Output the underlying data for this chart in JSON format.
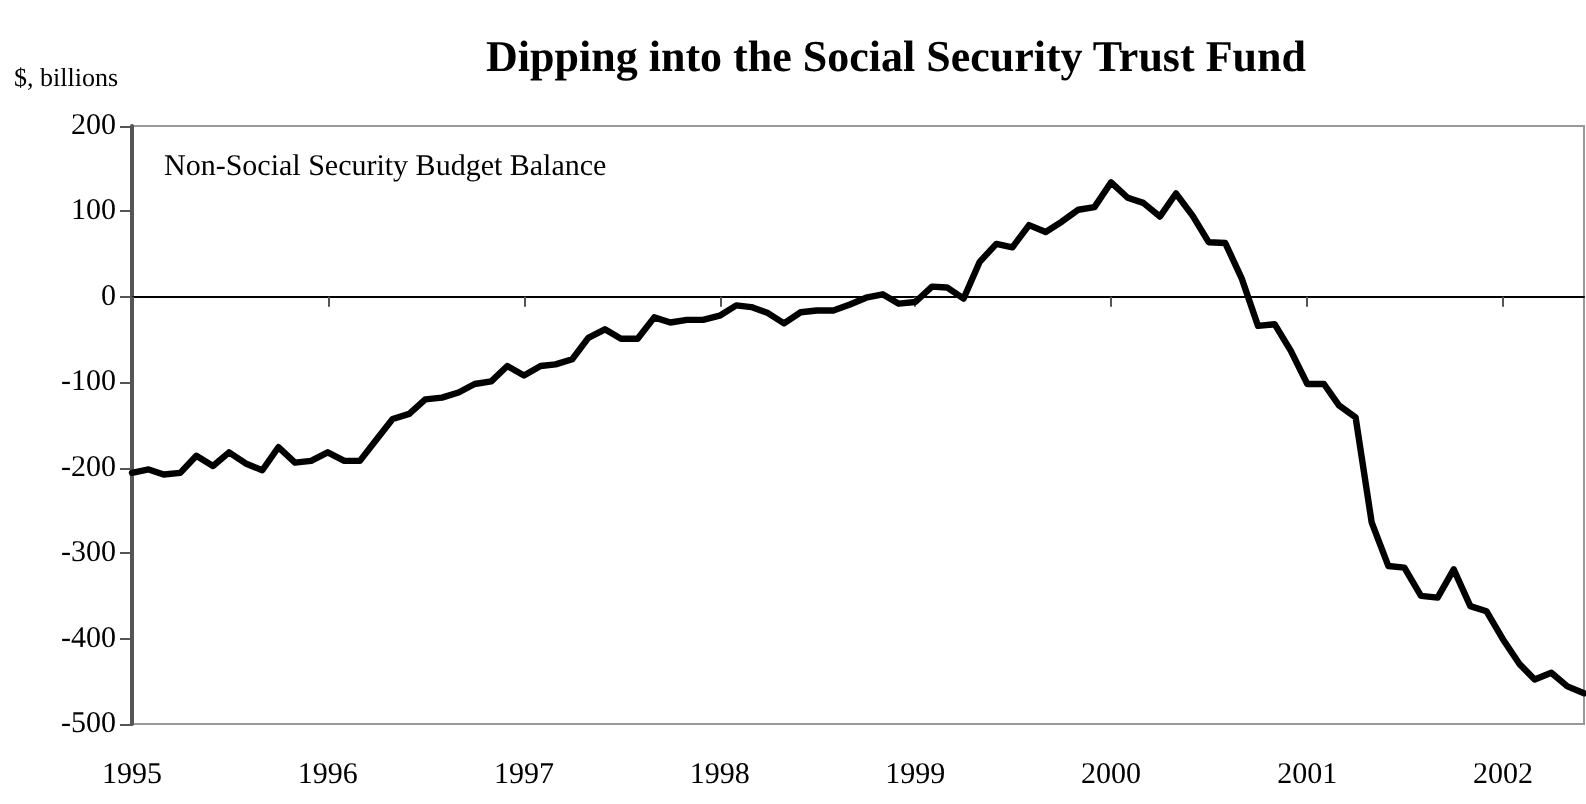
{
  "chart_data": {
    "type": "line",
    "title": "Dipping into the Social Security Trust Fund",
    "ylabel": "$, billions",
    "annotations": [
      "Non-Social Security Budget Balance"
    ],
    "x": [
      "1995-01",
      "1995-02",
      "1995-03",
      "1995-04",
      "1995-05",
      "1995-06",
      "1995-07",
      "1995-08",
      "1995-09",
      "1995-10",
      "1995-11",
      "1995-12",
      "1996-01",
      "1996-02",
      "1996-03",
      "1996-04",
      "1996-05",
      "1996-06",
      "1996-07",
      "1996-08",
      "1996-09",
      "1996-10",
      "1996-11",
      "1996-12",
      "1997-01",
      "1997-02",
      "1997-03",
      "1997-04",
      "1997-05",
      "1997-06",
      "1997-07",
      "1997-08",
      "1997-09",
      "1997-10",
      "1997-11",
      "1997-12",
      "1998-01",
      "1998-02",
      "1998-03",
      "1998-04",
      "1998-05",
      "1998-06",
      "1998-07",
      "1998-08",
      "1998-09",
      "1998-10",
      "1998-11",
      "1998-12",
      "1999-01",
      "1999-02",
      "1999-03",
      "1999-04",
      "1999-05",
      "1999-06",
      "1999-07",
      "1999-08",
      "1999-09",
      "1999-10",
      "1999-11",
      "1999-12",
      "2000-01",
      "2000-02",
      "2000-03",
      "2000-04",
      "2000-05",
      "2000-06",
      "2000-07",
      "2000-08",
      "2000-09",
      "2000-10",
      "2000-11",
      "2000-12",
      "2001-01",
      "2001-02",
      "2001-03",
      "2001-04",
      "2001-05",
      "2001-06",
      "2001-07",
      "2001-08",
      "2001-09",
      "2001-10",
      "2001-11",
      "2001-12",
      "2002-01",
      "2002-02",
      "2002-03",
      "2002-04",
      "2002-05",
      "2002-06"
    ],
    "series": [
      {
        "color": "#000000",
        "values": [
          -206,
          -202,
          -208,
          -206,
          -186,
          -198,
          -182,
          -195,
          -203,
          -176,
          -194,
          -192,
          -182,
          -192,
          -192,
          -167,
          -143,
          -137,
          -120,
          -118,
          -112,
          -102,
          -99,
          -81,
          -92,
          -81,
          -79,
          -73,
          -48,
          -38,
          -49,
          -49,
          -24,
          -30,
          -27,
          -27,
          -22,
          -10,
          -12,
          -19,
          -31,
          -18,
          -16,
          -16,
          -9,
          -1,
          3,
          -8,
          -6,
          12,
          11,
          -2,
          41,
          62,
          58,
          84,
          76,
          88,
          102,
          105,
          134,
          116,
          110,
          94,
          121,
          95,
          64,
          63,
          21,
          -34,
          -32,
          -63,
          -102,
          -102,
          -127,
          -141,
          -264,
          -315,
          -317,
          -350,
          -352,
          -319,
          -362,
          -368,
          -401,
          -430,
          -448,
          -440,
          -456,
          -464
        ]
      }
    ],
    "xlim": [
      "1995-01",
      "2002-06"
    ],
    "xticks": [
      "1995",
      "1996",
      "1997",
      "1998",
      "1999",
      "2000",
      "2001",
      "2002"
    ],
    "ylim": [
      -500,
      200
    ],
    "yticks": [
      -500,
      -400,
      -300,
      -200,
      -100,
      0,
      100,
      200
    ],
    "marker": "none",
    "line_style": "solid"
  }
}
